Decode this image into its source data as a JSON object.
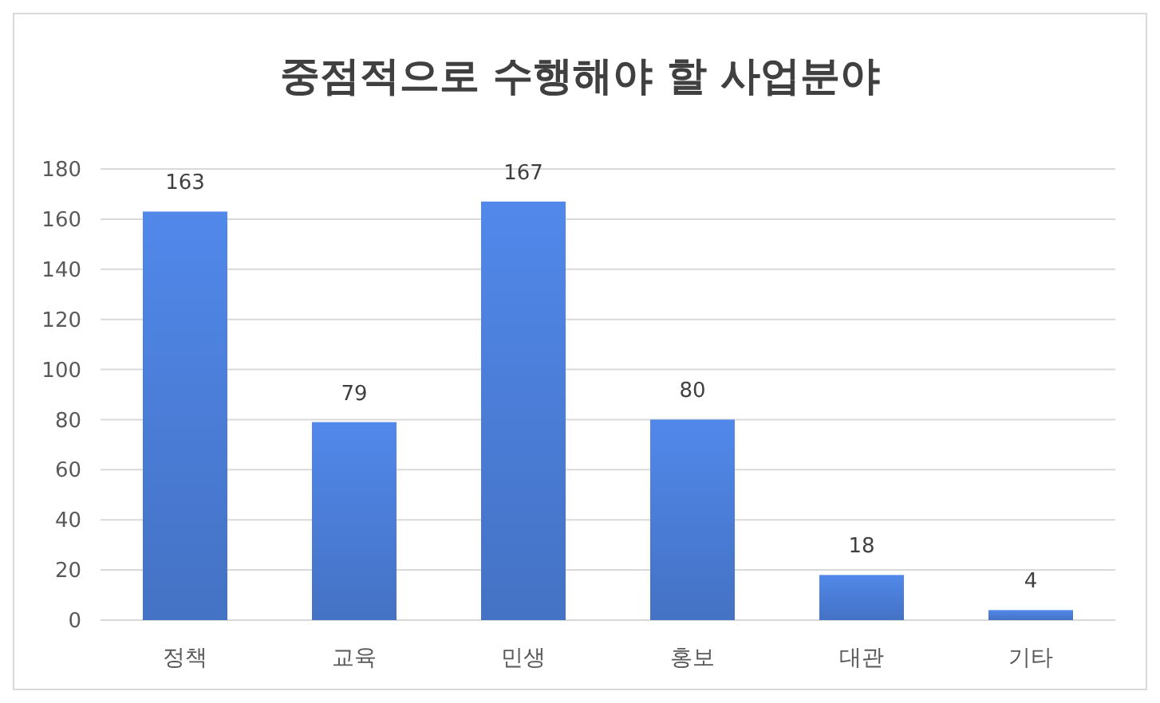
{
  "chart_data": {
    "type": "bar",
    "title": "중점적으로 수행해야 할 사업분야",
    "categories": [
      "정책",
      "교육",
      "민생",
      "홍보",
      "대관",
      "기타"
    ],
    "values": [
      163,
      79,
      167,
      80,
      18,
      4
    ],
    "color": "#4472c4",
    "ylim": [
      0,
      180
    ],
    "yticks": [
      0,
      20,
      40,
      60,
      80,
      100,
      120,
      140,
      160,
      180
    ],
    "grid": "y",
    "data_labels": true
  }
}
